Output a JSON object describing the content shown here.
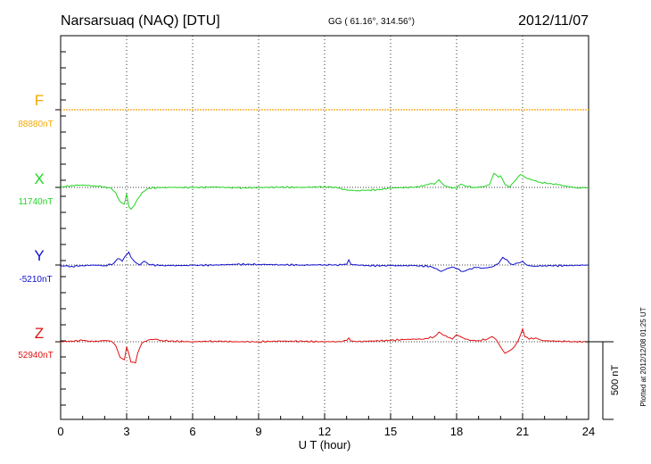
{
  "header": {
    "station": "Narsarsuaq (NAQ)  [DTU]",
    "coords": "GG ( 61.16°, 314.56°)",
    "date": "2012/11/07"
  },
  "footer_note": "Plotted at 2012/12/08 01:25 UT",
  "colors": {
    "F": "#f5a800",
    "X": "#22d522",
    "Y": "#1010d0",
    "Z": "#e01010"
  },
  "chart_data": {
    "type": "line",
    "title": "Narsarsuaq (NAQ)  [DTU]",
    "xlabel": "U T (hour)",
    "xlim": [
      0,
      24
    ],
    "x_ticks": [
      0,
      3,
      6,
      9,
      12,
      15,
      18,
      21,
      24
    ],
    "x_tick_labels": [
      "0",
      "3",
      "6",
      "9",
      "12",
      "15",
      "18",
      "21",
      "24"
    ],
    "scale_bar_label": "500 nT",
    "scale_bar_nT": 500,
    "series": [
      {
        "name": "F",
        "baseline_label": "88880nT",
        "baseline_nT": 88880,
        "points": [
          [
            0,
            0
          ],
          [
            24,
            0
          ]
        ]
      },
      {
        "name": "X",
        "baseline_label": "11740nT",
        "baseline_nT": 11740,
        "points": [
          [
            0,
            0
          ],
          [
            0.5,
            15
          ],
          [
            1.0,
            18
          ],
          [
            1.5,
            12
          ],
          [
            2.0,
            5
          ],
          [
            2.3,
            -8
          ],
          [
            2.5,
            -40
          ],
          [
            2.7,
            -110
          ],
          [
            2.9,
            -130
          ],
          [
            3.0,
            -50
          ],
          [
            3.1,
            -150
          ],
          [
            3.2,
            -170
          ],
          [
            3.35,
            -140
          ],
          [
            3.5,
            -90
          ],
          [
            3.7,
            -40
          ],
          [
            4.0,
            -5
          ],
          [
            4.5,
            -3
          ],
          [
            5.0,
            0
          ],
          [
            6,
            -2
          ],
          [
            7,
            3
          ],
          [
            8,
            -5
          ],
          [
            9,
            -2
          ],
          [
            10,
            2
          ],
          [
            11,
            0
          ],
          [
            12,
            5
          ],
          [
            12.3,
            3
          ],
          [
            12.6,
            -5
          ],
          [
            13.0,
            -20
          ],
          [
            13.5,
            -25
          ],
          [
            14.0,
            -20
          ],
          [
            14.5,
            -18
          ],
          [
            15.0,
            -5
          ],
          [
            15.5,
            -2
          ],
          [
            16.0,
            0
          ],
          [
            16.5,
            10
          ],
          [
            16.8,
            30
          ],
          [
            17.0,
            25
          ],
          [
            17.2,
            60
          ],
          [
            17.4,
            20
          ],
          [
            17.6,
            5
          ],
          [
            18.0,
            -10
          ],
          [
            18.2,
            25
          ],
          [
            18.4,
            10
          ],
          [
            18.8,
            0
          ],
          [
            19.2,
            5
          ],
          [
            19.5,
            20
          ],
          [
            19.7,
            110
          ],
          [
            19.9,
            80
          ],
          [
            20.0,
            90
          ],
          [
            20.2,
            20
          ],
          [
            20.4,
            0
          ],
          [
            20.6,
            40
          ],
          [
            20.9,
            100
          ],
          [
            21.2,
            70
          ],
          [
            21.5,
            55
          ],
          [
            21.8,
            40
          ],
          [
            22.2,
            30
          ],
          [
            22.6,
            20
          ],
          [
            23.0,
            10
          ],
          [
            23.5,
            -5
          ],
          [
            24,
            0
          ]
        ]
      },
      {
        "name": "Y",
        "baseline_label": "-5210nT",
        "baseline_nT": -5210,
        "points": [
          [
            0,
            -5
          ],
          [
            0.5,
            -10
          ],
          [
            1.0,
            -5
          ],
          [
            1.5,
            0
          ],
          [
            2.0,
            -5
          ],
          [
            2.4,
            10
          ],
          [
            2.6,
            50
          ],
          [
            2.8,
            30
          ],
          [
            3.0,
            80
          ],
          [
            3.1,
            100
          ],
          [
            3.2,
            60
          ],
          [
            3.4,
            20
          ],
          [
            3.6,
            0
          ],
          [
            3.8,
            30
          ],
          [
            4.0,
            5
          ],
          [
            4.5,
            -5
          ],
          [
            5.0,
            -5
          ],
          [
            6,
            -3
          ],
          [
            7,
            0
          ],
          [
            8,
            5
          ],
          [
            9,
            5
          ],
          [
            10,
            2
          ],
          [
            11,
            0
          ],
          [
            12,
            2
          ],
          [
            12.3,
            0
          ],
          [
            12.8,
            0
          ],
          [
            13.0,
            5
          ],
          [
            13.1,
            40
          ],
          [
            13.2,
            5
          ],
          [
            13.5,
            0
          ],
          [
            14,
            -5
          ],
          [
            15,
            -5
          ],
          [
            16,
            -5
          ],
          [
            16.8,
            -10
          ],
          [
            17.1,
            -30
          ],
          [
            17.3,
            -50
          ],
          [
            17.6,
            -25
          ],
          [
            17.8,
            -15
          ],
          [
            18.0,
            -30
          ],
          [
            18.3,
            -50
          ],
          [
            18.6,
            -30
          ],
          [
            18.9,
            -20
          ],
          [
            19.2,
            -25
          ],
          [
            19.6,
            -15
          ],
          [
            19.9,
            10
          ],
          [
            20.1,
            60
          ],
          [
            20.3,
            40
          ],
          [
            20.5,
            5
          ],
          [
            20.8,
            15
          ],
          [
            21.0,
            30
          ],
          [
            21.2,
            0
          ],
          [
            21.5,
            -10
          ],
          [
            22.0,
            -5
          ],
          [
            23.0,
            -5
          ],
          [
            24,
            0
          ]
        ]
      },
      {
        "name": "Z",
        "baseline_label": "52940nT",
        "baseline_nT": 52940,
        "points": [
          [
            0,
            0
          ],
          [
            0.5,
            5
          ],
          [
            1.0,
            10
          ],
          [
            1.5,
            0
          ],
          [
            2.0,
            10
          ],
          [
            2.3,
            5
          ],
          [
            2.5,
            -30
          ],
          [
            2.7,
            -120
          ],
          [
            2.9,
            -140
          ],
          [
            3.0,
            -40
          ],
          [
            3.2,
            -160
          ],
          [
            3.4,
            -165
          ],
          [
            3.5,
            -90
          ],
          [
            3.7,
            -10
          ],
          [
            4.0,
            15
          ],
          [
            4.3,
            20
          ],
          [
            4.6,
            10
          ],
          [
            5.0,
            5
          ],
          [
            6,
            0
          ],
          [
            7,
            5
          ],
          [
            8,
            0
          ],
          [
            9,
            0
          ],
          [
            10,
            5
          ],
          [
            11,
            3
          ],
          [
            12,
            0
          ],
          [
            12.3,
            0
          ],
          [
            12.8,
            0
          ],
          [
            13.0,
            10
          ],
          [
            13.1,
            30
          ],
          [
            13.2,
            5
          ],
          [
            13.5,
            0
          ],
          [
            14,
            5
          ],
          [
            15,
            10
          ],
          [
            15.8,
            20
          ],
          [
            16.5,
            20
          ],
          [
            17.0,
            40
          ],
          [
            17.2,
            75
          ],
          [
            17.4,
            50
          ],
          [
            17.6,
            35
          ],
          [
            17.8,
            20
          ],
          [
            18.0,
            55
          ],
          [
            18.3,
            30
          ],
          [
            18.6,
            10
          ],
          [
            19.0,
            10
          ],
          [
            19.4,
            20
          ],
          [
            19.6,
            40
          ],
          [
            19.8,
            15
          ],
          [
            20.0,
            -40
          ],
          [
            20.2,
            -90
          ],
          [
            20.5,
            -60
          ],
          [
            20.7,
            -20
          ],
          [
            20.9,
            50
          ],
          [
            21.0,
            100
          ],
          [
            21.1,
            40
          ],
          [
            21.3,
            20
          ],
          [
            21.6,
            30
          ],
          [
            21.9,
            10
          ],
          [
            22.3,
            5
          ],
          [
            22.7,
            5
          ],
          [
            23.0,
            0
          ],
          [
            24,
            0
          ]
        ]
      }
    ]
  }
}
